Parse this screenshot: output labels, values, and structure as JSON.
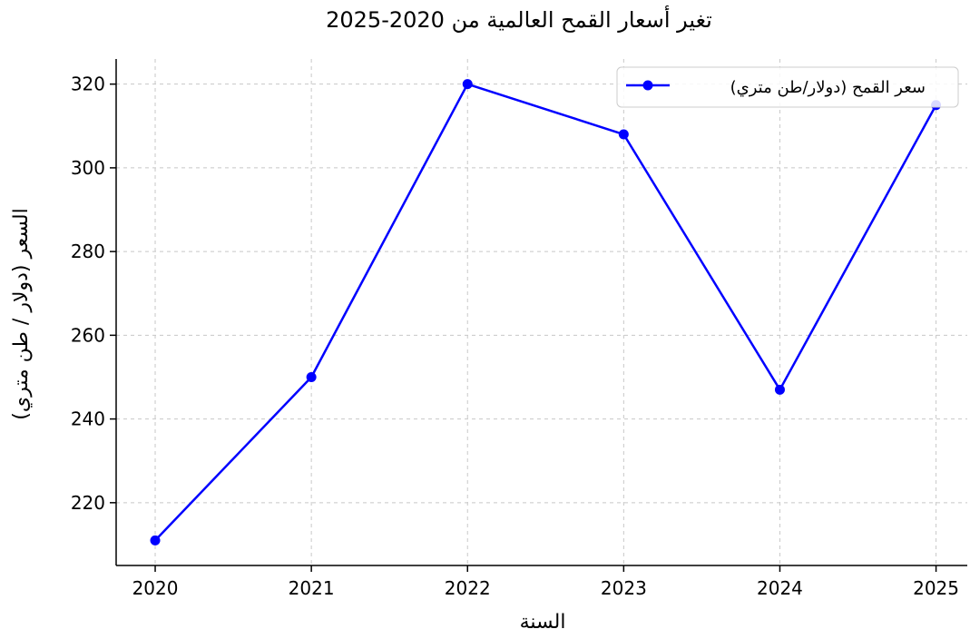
{
  "chart_data": {
    "type": "line",
    "title": "تغير أسعار القمح العالمية من 2020-2025",
    "xlabel": "السنة",
    "ylabel": "السعر (دولار / طن متري)",
    "x": [
      2020,
      2021,
      2022,
      2023,
      2024,
      2025
    ],
    "x_tick_labels": [
      "2020",
      "2021",
      "2022",
      "2023",
      "2024",
      "2025"
    ],
    "y_ticks": [
      220,
      240,
      260,
      280,
      300,
      320
    ],
    "y_tick_labels": [
      "220",
      "240",
      "260",
      "280",
      "300",
      "320"
    ],
    "xlim": [
      2019.75,
      2025.2
    ],
    "ylim": [
      205,
      326
    ],
    "series": [
      {
        "name": "سعر القمح (دولار/طن متري)",
        "values": [
          211,
          250,
          320,
          308,
          247,
          315
        ],
        "color": "#0000ff",
        "marker": "circle"
      }
    ],
    "grid": true,
    "legend_position": "top-right"
  }
}
